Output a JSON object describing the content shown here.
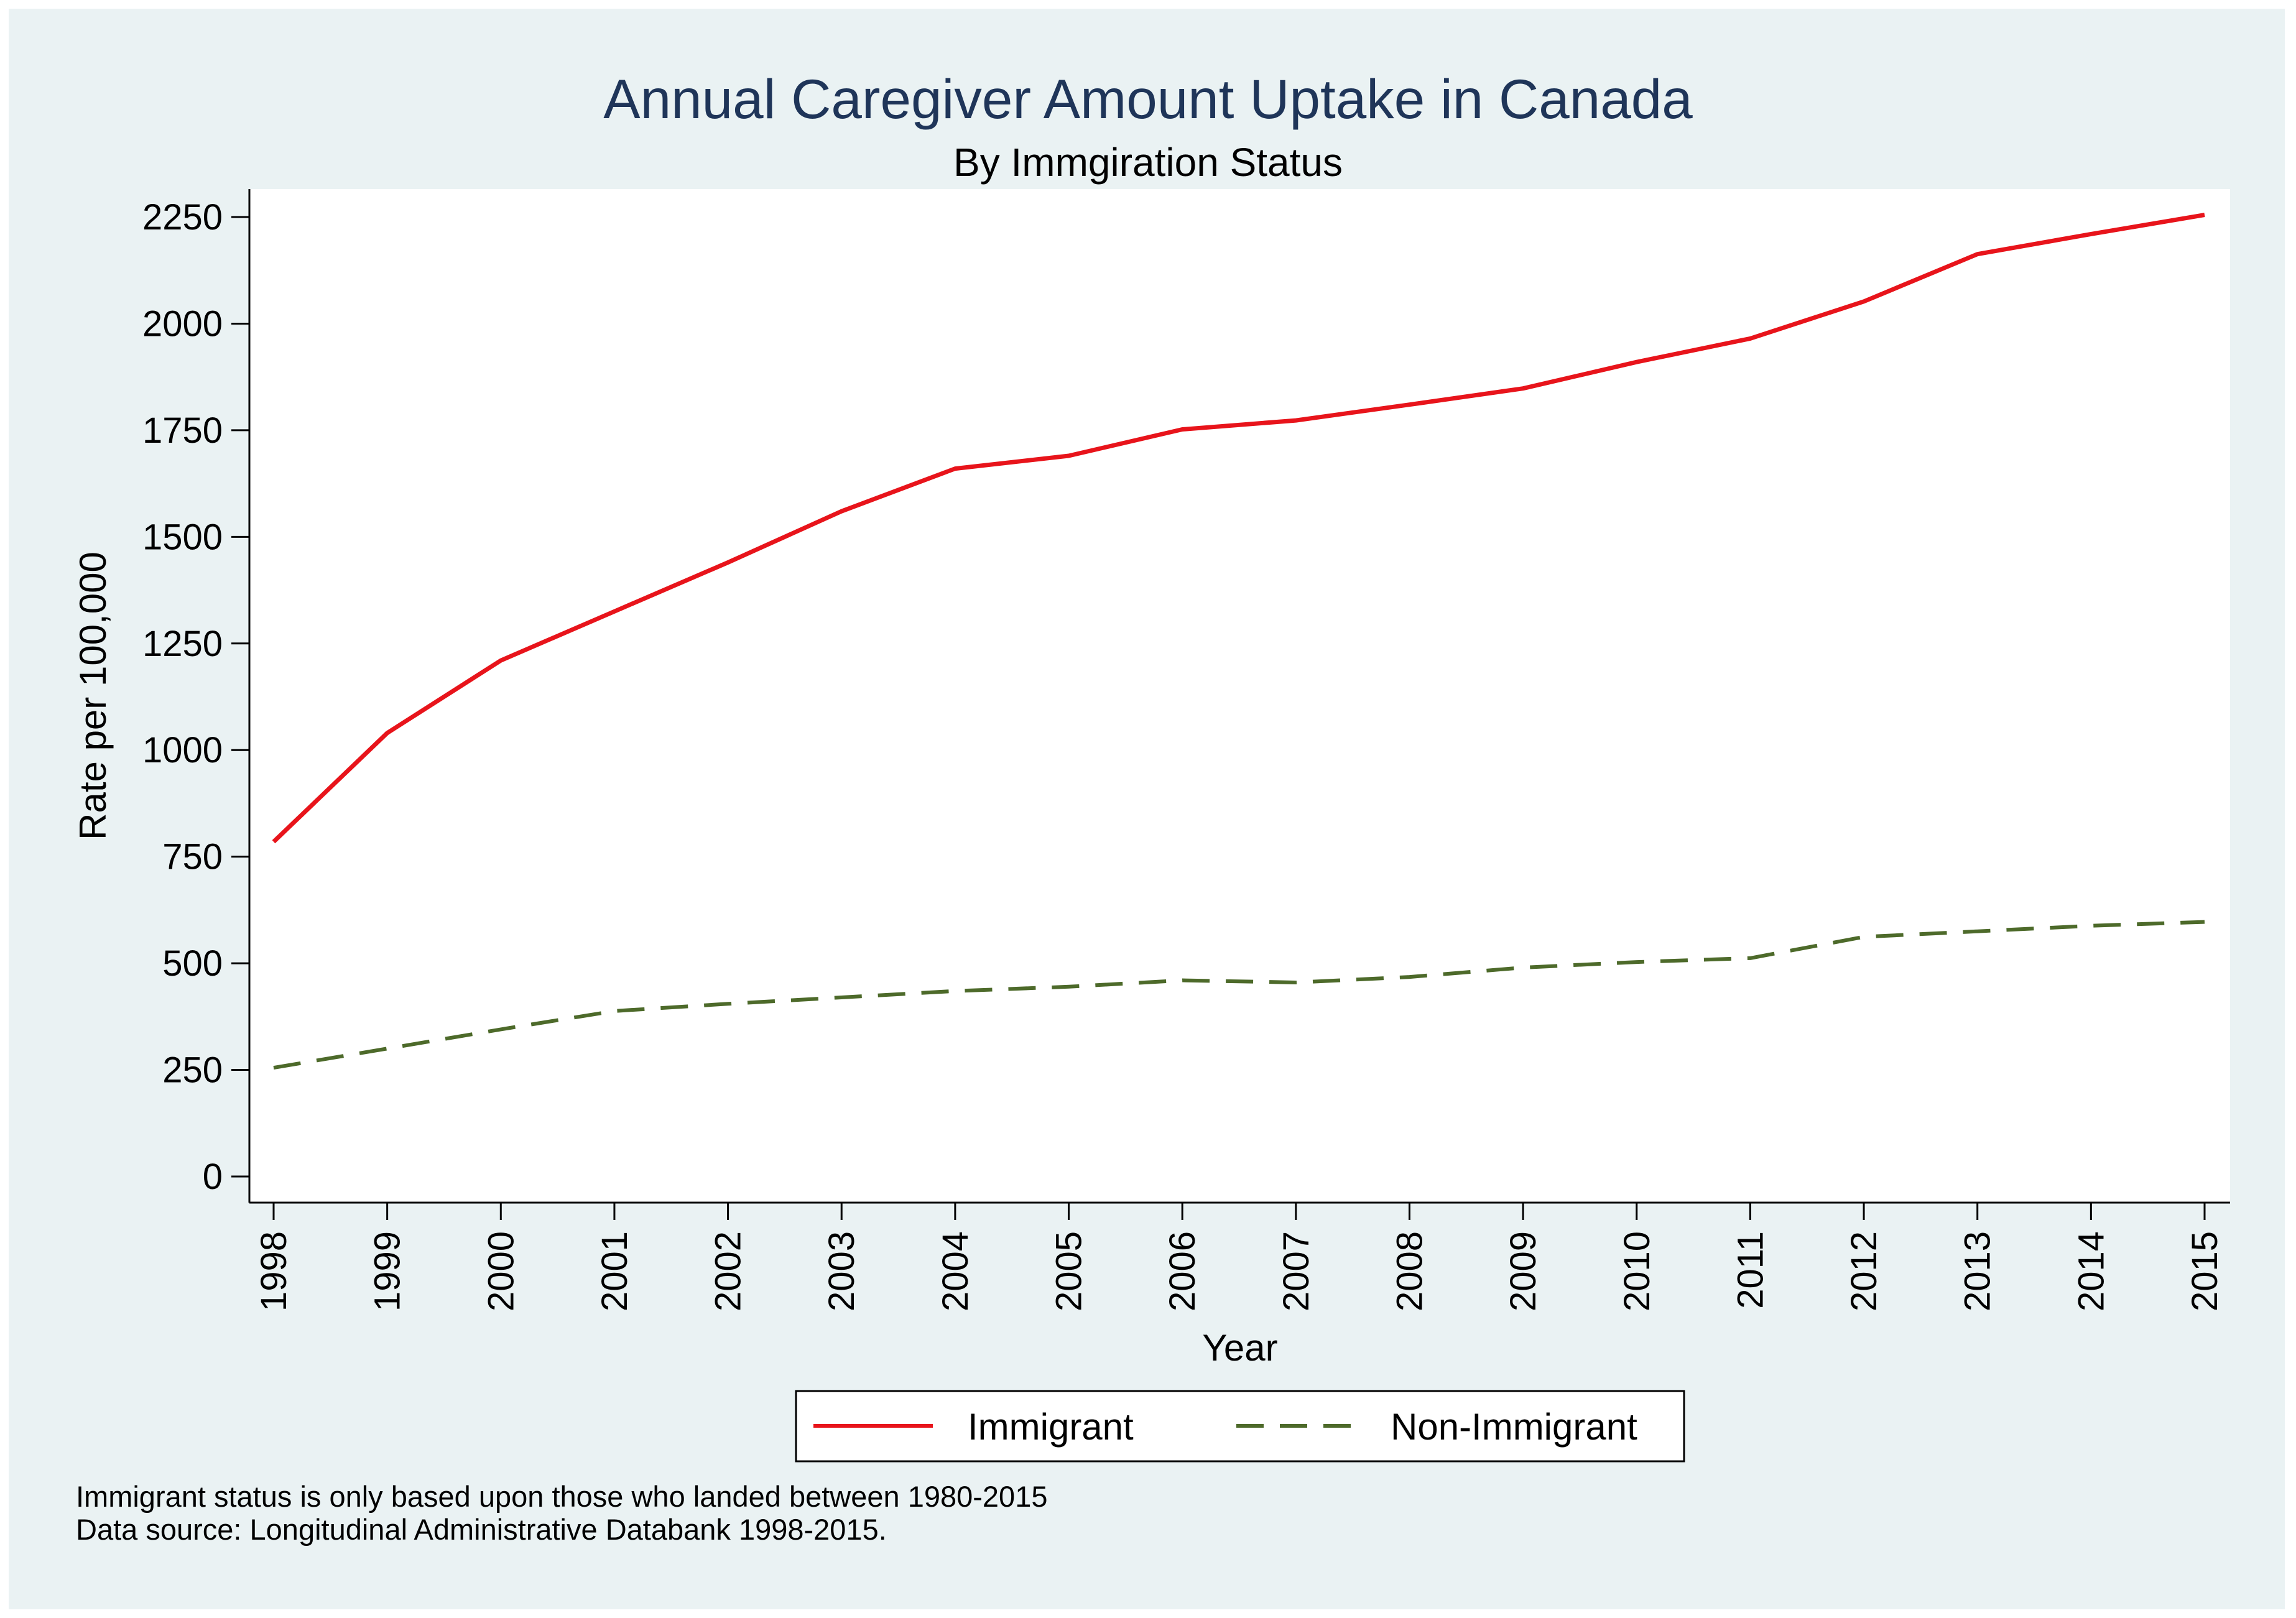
{
  "chart_data": {
    "type": "line",
    "title": "Annual Caregiver Amount Uptake in Canada",
    "subtitle": "By Immgiration Status",
    "xlabel": "Year",
    "ylabel": "Rate per 100,000",
    "x": [
      "1998",
      "1999",
      "2000",
      "2001",
      "2002",
      "2003",
      "2004",
      "2005",
      "2006",
      "2007",
      "2008",
      "2009",
      "2010",
      "2011",
      "2012",
      "2013",
      "2014",
      "2015"
    ],
    "ylim": [
      0,
      2250
    ],
    "yticks": [
      "0",
      "250",
      "500",
      "750",
      "1000",
      "1250",
      "1500",
      "1750",
      "2000",
      "2250"
    ],
    "grid": false,
    "legend_position": "bottom",
    "series": [
      {
        "name": "Immigrant",
        "color": "#e8141b",
        "style": "solid",
        "values": [
          785,
          1040,
          1210,
          1325,
          1440,
          1560,
          1660,
          1690,
          1752,
          1773,
          1810,
          1848,
          1910,
          1965,
          2052,
          2163,
          2210,
          2255
        ]
      },
      {
        "name": "Non-Immigrant",
        "color": "#4d6a2a",
        "style": "dashed",
        "values": [
          255,
          300,
          345,
          388,
          405,
          420,
          435,
          445,
          460,
          455,
          468,
          490,
          503,
          512,
          562,
          575,
          588,
          597
        ]
      }
    ]
  },
  "notes": [
    "Immigrant status is only based upon those who landed between 1980-2015",
    "Data source: Longitudinal Administrative Databank 1998-2015."
  ]
}
